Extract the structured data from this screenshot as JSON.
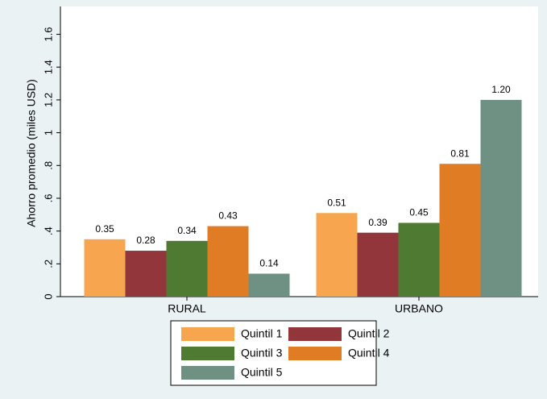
{
  "chart_data": {
    "type": "bar",
    "y_label": "Ahorro promedio (miles USD)",
    "categories": [
      "RURAL",
      "URBANO"
    ],
    "series": [
      {
        "name": "Quintil 1",
        "color": "#f8a54f",
        "values": [
          0.35,
          0.51
        ],
        "value_labels": [
          "0.35",
          "0.51"
        ]
      },
      {
        "name": "Quintil 2",
        "color": "#93363b",
        "values": [
          0.28,
          0.39
        ],
        "value_labels": [
          "0.28",
          "0.39"
        ]
      },
      {
        "name": "Quintil 3",
        "color": "#4e7a31",
        "values": [
          0.34,
          0.45
        ],
        "value_labels": [
          "0.34",
          "0.45"
        ]
      },
      {
        "name": "Quintil 4",
        "color": "#e07d24",
        "values": [
          0.43,
          0.81
        ],
        "value_labels": [
          "0.43",
          "0.81"
        ]
      },
      {
        "name": "Quintil 5",
        "color": "#6f9184",
        "values": [
          0.14,
          1.2
        ],
        "value_labels": [
          "0.14",
          "1.20"
        ]
      }
    ],
    "ylim": [
      0,
      1.77
    ],
    "yticks": [
      0,
      {
        "value": 0.2,
        "label": ".2"
      },
      {
        "value": 0.4,
        "label": ".4"
      },
      {
        "value": 0.6,
        "label": ".6"
      },
      {
        "value": 0.8,
        "label": ".8"
      },
      1,
      1.2,
      1.4,
      1.6
    ],
    "grid": false,
    "legend": "bottom"
  }
}
